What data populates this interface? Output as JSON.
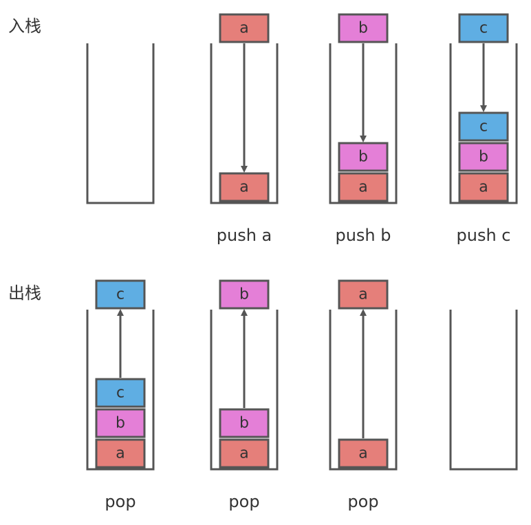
{
  "colors": {
    "a": "#E57F7A",
    "b": "#E47FD7",
    "c": "#5FAEE3",
    "stroke": "#555555",
    "text": "#333333"
  },
  "push_section": {
    "title": "入栈",
    "stages": [
      {
        "caption": "",
        "incoming": null,
        "stack": []
      },
      {
        "caption": "push a",
        "incoming": "a",
        "stack": [
          "a"
        ]
      },
      {
        "caption": "push b",
        "incoming": "b",
        "stack": [
          "a",
          "b"
        ]
      },
      {
        "caption": "push c",
        "incoming": "c",
        "stack": [
          "a",
          "b",
          "c"
        ]
      }
    ]
  },
  "pop_section": {
    "title": "出栈",
    "stages": [
      {
        "caption": "pop",
        "outgoing": "c",
        "stack": [
          "a",
          "b",
          "c"
        ]
      },
      {
        "caption": "pop",
        "outgoing": "b",
        "stack": [
          "a",
          "b"
        ]
      },
      {
        "caption": "pop",
        "outgoing": "a",
        "stack": [
          "a"
        ]
      },
      {
        "caption": "",
        "outgoing": null,
        "stack": []
      }
    ]
  }
}
